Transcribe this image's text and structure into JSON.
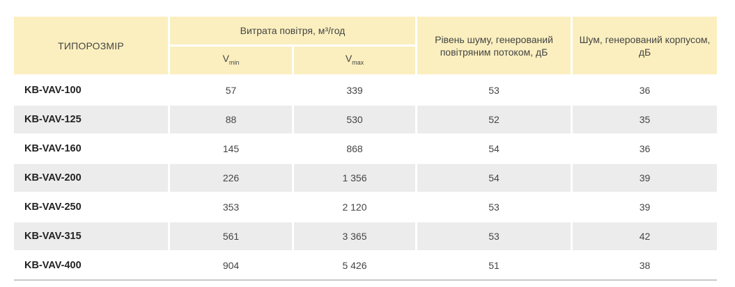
{
  "table": {
    "headers": {
      "size": "ТИПОРОЗМІР",
      "airflow_group": "Витрата повітря, м³/год",
      "vmin_main": "V",
      "vmin_sub": "min",
      "vmax_main": "V",
      "vmax_sub": "max",
      "noise_flow": "Рівень шуму, генерований повітряним потоком, дБ",
      "noise_case": "Шум, генерований корпусом, дБ"
    },
    "rows": [
      {
        "model": "KB-VAV-100",
        "vmin": "57",
        "vmax": "339",
        "noise_flow": "53",
        "noise_case": "36"
      },
      {
        "model": "KB-VAV-125",
        "vmin": "88",
        "vmax": "530",
        "noise_flow": "52",
        "noise_case": "35"
      },
      {
        "model": "KB-VAV-160",
        "vmin": "145",
        "vmax": "868",
        "noise_flow": "54",
        "noise_case": "36"
      },
      {
        "model": "KB-VAV-200",
        "vmin": "226",
        "vmax": "1 356",
        "noise_flow": "54",
        "noise_case": "39"
      },
      {
        "model": "KB-VAV-250",
        "vmin": "353",
        "vmax": "2 120",
        "noise_flow": "53",
        "noise_case": "39"
      },
      {
        "model": "KB-VAV-315",
        "vmin": "561",
        "vmax": "3 365",
        "noise_flow": "53",
        "noise_case": "42"
      },
      {
        "model": "KB-VAV-400",
        "vmin": "904",
        "vmax": "5 426",
        "noise_flow": "51",
        "noise_case": "38"
      }
    ]
  },
  "colors": {
    "header_bg": "#fbefbf",
    "alt_row_bg": "#ececec"
  }
}
